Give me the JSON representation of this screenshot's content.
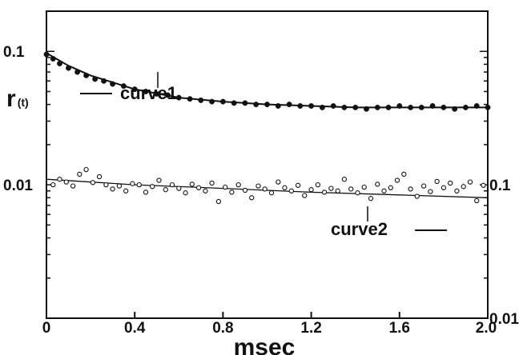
{
  "chart_data": {
    "type": "scatter",
    "title": "",
    "xlabel": "msec",
    "ylabel_left": "r",
    "ylabel_left_sub": "(t)",
    "xlim": [
      0,
      2.0
    ],
    "ylim_left": [
      0.001,
      0.2
    ],
    "ylim_right": [
      0.01,
      2.0
    ],
    "yscale": "log",
    "grid": false,
    "x_ticks": [
      "0",
      "0.4",
      "0.8",
      "1.2",
      "1.6",
      "2.0"
    ],
    "y_ticks_left": [
      "0.1",
      "0.01"
    ],
    "y_ticks_right": [
      "0.1",
      "0.01"
    ],
    "series": [
      {
        "name": "curve1",
        "axis": "left",
        "marker": "filled-circle",
        "fit": [
          [
            0.0,
            0.097
          ],
          [
            0.1,
            0.078
          ],
          [
            0.2,
            0.066
          ],
          [
            0.4,
            0.052
          ],
          [
            0.6,
            0.045
          ],
          [
            0.8,
            0.042
          ],
          [
            1.0,
            0.04
          ],
          [
            1.2,
            0.039
          ],
          [
            1.4,
            0.038
          ],
          [
            1.6,
            0.038
          ],
          [
            1.8,
            0.038
          ],
          [
            2.0,
            0.038
          ]
        ],
        "points": [
          [
            0.0,
            0.095
          ],
          [
            0.03,
            0.088
          ],
          [
            0.06,
            0.081
          ],
          [
            0.1,
            0.075
          ],
          [
            0.14,
            0.07
          ],
          [
            0.18,
            0.066
          ],
          [
            0.22,
            0.062
          ],
          [
            0.26,
            0.06
          ],
          [
            0.3,
            0.057
          ],
          [
            0.35,
            0.055
          ],
          [
            0.4,
            0.052
          ],
          [
            0.45,
            0.05
          ],
          [
            0.5,
            0.048
          ],
          [
            0.55,
            0.047
          ],
          [
            0.6,
            0.045
          ],
          [
            0.65,
            0.044
          ],
          [
            0.7,
            0.043
          ],
          [
            0.75,
            0.042
          ],
          [
            0.8,
            0.042
          ],
          [
            0.85,
            0.041
          ],
          [
            0.9,
            0.041
          ],
          [
            0.95,
            0.04
          ],
          [
            1.0,
            0.04
          ],
          [
            1.05,
            0.039
          ],
          [
            1.1,
            0.04
          ],
          [
            1.15,
            0.039
          ],
          [
            1.2,
            0.039
          ],
          [
            1.25,
            0.038
          ],
          [
            1.3,
            0.039
          ],
          [
            1.35,
            0.038
          ],
          [
            1.4,
            0.038
          ],
          [
            1.45,
            0.037
          ],
          [
            1.5,
            0.038
          ],
          [
            1.55,
            0.038
          ],
          [
            1.6,
            0.039
          ],
          [
            1.65,
            0.038
          ],
          [
            1.7,
            0.038
          ],
          [
            1.75,
            0.039
          ],
          [
            1.8,
            0.038
          ],
          [
            1.85,
            0.037
          ],
          [
            1.9,
            0.038
          ],
          [
            1.95,
            0.039
          ],
          [
            2.0,
            0.038
          ]
        ]
      },
      {
        "name": "curve2",
        "axis": "right",
        "marker": "open-circle",
        "fit": [
          [
            0.0,
            0.11
          ],
          [
            0.4,
            0.1
          ],
          [
            0.8,
            0.094
          ],
          [
            1.2,
            0.088
          ],
          [
            1.6,
            0.084
          ],
          [
            2.0,
            0.08
          ]
        ],
        "points": [
          [
            0.03,
            0.1
          ],
          [
            0.06,
            0.11
          ],
          [
            0.09,
            0.105
          ],
          [
            0.12,
            0.098
          ],
          [
            0.15,
            0.12
          ],
          [
            0.18,
            0.13
          ],
          [
            0.21,
            0.104
          ],
          [
            0.24,
            0.115
          ],
          [
            0.27,
            0.1
          ],
          [
            0.3,
            0.093
          ],
          [
            0.33,
            0.098
          ],
          [
            0.36,
            0.09
          ],
          [
            0.39,
            0.102
          ],
          [
            0.42,
            0.1
          ],
          [
            0.45,
            0.088
          ],
          [
            0.48,
            0.097
          ],
          [
            0.51,
            0.108
          ],
          [
            0.54,
            0.092
          ],
          [
            0.57,
            0.1
          ],
          [
            0.6,
            0.094
          ],
          [
            0.63,
            0.087
          ],
          [
            0.66,
            0.101
          ],
          [
            0.69,
            0.095
          ],
          [
            0.72,
            0.09
          ],
          [
            0.75,
            0.103
          ],
          [
            0.78,
            0.075
          ],
          [
            0.81,
            0.096
          ],
          [
            0.84,
            0.088
          ],
          [
            0.87,
            0.1
          ],
          [
            0.9,
            0.091
          ],
          [
            0.93,
            0.08
          ],
          [
            0.96,
            0.098
          ],
          [
            0.99,
            0.093
          ],
          [
            1.02,
            0.087
          ],
          [
            1.05,
            0.105
          ],
          [
            1.08,
            0.095
          ],
          [
            1.11,
            0.09
          ],
          [
            1.14,
            0.099
          ],
          [
            1.17,
            0.083
          ],
          [
            1.2,
            0.092
          ],
          [
            1.23,
            0.1
          ],
          [
            1.26,
            0.088
          ],
          [
            1.29,
            0.094
          ],
          [
            1.32,
            0.09
          ],
          [
            1.35,
            0.11
          ],
          [
            1.38,
            0.093
          ],
          [
            1.41,
            0.087
          ],
          [
            1.44,
            0.096
          ],
          [
            1.47,
            0.079
          ],
          [
            1.5,
            0.101
          ],
          [
            1.53,
            0.09
          ],
          [
            1.56,
            0.095
          ],
          [
            1.59,
            0.108
          ],
          [
            1.62,
            0.12
          ],
          [
            1.65,
            0.093
          ],
          [
            1.68,
            0.082
          ],
          [
            1.71,
            0.098
          ],
          [
            1.74,
            0.089
          ],
          [
            1.77,
            0.106
          ],
          [
            1.8,
            0.095
          ],
          [
            1.83,
            0.103
          ],
          [
            1.86,
            0.09
          ],
          [
            1.89,
            0.097
          ],
          [
            1.92,
            0.105
          ],
          [
            1.95,
            0.076
          ],
          [
            1.98,
            0.099
          ]
        ]
      }
    ],
    "annotations": [
      {
        "text": "curve1",
        "arrow": "left",
        "x": 0.5,
        "y": 0.022
      },
      {
        "text": "curve2",
        "arrow": "right",
        "x": 1.45,
        "y": 0.045
      }
    ]
  }
}
